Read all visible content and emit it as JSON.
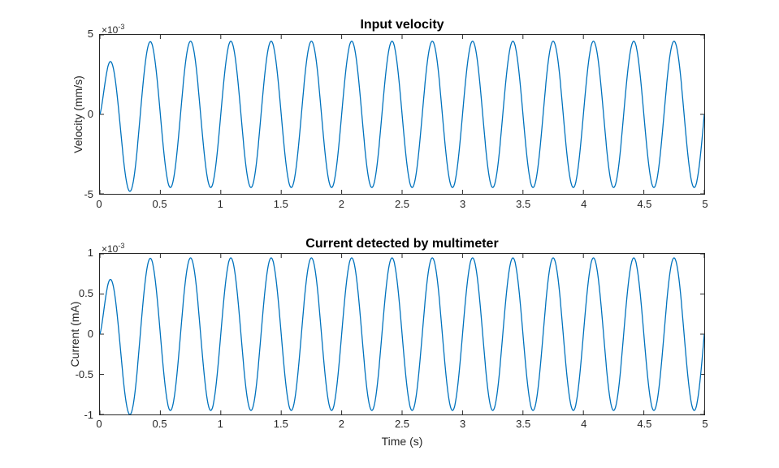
{
  "figure": {
    "background": "#ffffff",
    "text_color": "#262626",
    "title_color": "#000000"
  },
  "chart_data": [
    {
      "type": "line",
      "title": "Input velocity",
      "xlabel": "",
      "ylabel": "Velocity (mm/s)",
      "y_exponent": {
        "base": "×10",
        "power": "-3"
      },
      "y_units_scale": "1e-3",
      "xlim": [
        0,
        5
      ],
      "ylim": [
        -5,
        5
      ],
      "xticks": [
        0,
        0.5,
        1,
        1.5,
        2,
        2.5,
        3,
        3.5,
        4,
        4.5,
        5
      ],
      "xtick_labels": [
        "0",
        "0.5",
        "1",
        "1.5",
        "2",
        "2.5",
        "3",
        "3.5",
        "4",
        "4.5",
        "5"
      ],
      "yticks": [
        5,
        0,
        -5
      ],
      "ytick_labels": [
        "5",
        "0",
        "-5"
      ],
      "grid": false,
      "box": true,
      "legend": "none",
      "line_color": "#0072BD",
      "signal": {
        "model": "y(t) = A*sin(2*pi*f*t) - B*t*exp(-t/tau), values in 1e-3 mm/s",
        "A": 4.6,
        "f_hz": 3,
        "B": 62,
        "tau": 0.06,
        "steady_peak": 4.6,
        "first_peak": 3.3,
        "first_trough": -4.85,
        "start_value": 0
      }
    },
    {
      "type": "line",
      "title": "Current detected by multimeter",
      "xlabel": "Time (s)",
      "ylabel": "Current (mA)",
      "y_exponent": {
        "base": "×10",
        "power": "-3"
      },
      "y_units_scale": "1e-3",
      "xlim": [
        0,
        5
      ],
      "ylim": [
        -1,
        1
      ],
      "xticks": [
        0,
        0.5,
        1,
        1.5,
        2,
        2.5,
        3,
        3.5,
        4,
        4.5,
        5
      ],
      "xtick_labels": [
        "0",
        "0.5",
        "1",
        "1.5",
        "2",
        "2.5",
        "3",
        "3.5",
        "4",
        "4.5",
        "5"
      ],
      "yticks": [
        1,
        0.5,
        0,
        -0.5,
        -1
      ],
      "ytick_labels": [
        "1",
        "0.5",
        "0",
        "-0.5",
        "-1"
      ],
      "grid": false,
      "box": true,
      "legend": "none",
      "line_color": "#0072BD",
      "signal": {
        "model": "y(t) = A*sin(2*pi*f*t) - B*t*exp(-t/tau), values in 1e-3 mA",
        "A": 0.95,
        "f_hz": 3,
        "B": 13,
        "tau": 0.06,
        "steady_peak": 0.95,
        "first_peak": 0.7,
        "first_trough": -1.0,
        "start_value": 0
      }
    }
  ]
}
